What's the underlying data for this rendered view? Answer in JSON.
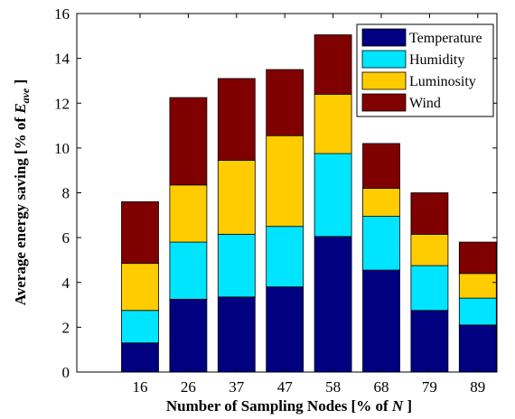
{
  "chart_data": {
    "type": "bar",
    "stacked": true,
    "categories": [
      "16",
      "26",
      "37",
      "47",
      "58",
      "68",
      "79",
      "89"
    ],
    "series": [
      {
        "name": "Temperature",
        "color": "#000080",
        "values": [
          1.3,
          3.25,
          3.35,
          3.8,
          6.05,
          4.55,
          2.75,
          2.1
        ]
      },
      {
        "name": "Humidity",
        "color": "#00e5ff",
        "values": [
          1.45,
          2.55,
          2.8,
          2.7,
          3.7,
          2.4,
          2.0,
          1.2
        ]
      },
      {
        "name": "Luminosity",
        "color": "#ffcc00",
        "values": [
          2.1,
          2.55,
          3.3,
          4.05,
          2.65,
          1.25,
          1.4,
          1.1
        ]
      },
      {
        "name": "Wind",
        "color": "#800000",
        "values": [
          2.75,
          3.9,
          3.65,
          2.95,
          2.65,
          2.0,
          1.85,
          1.4
        ]
      }
    ],
    "xlabel_parts": [
      "Number of Sampling Nodes [% of ",
      "N",
      " ]"
    ],
    "ylabel_parts": [
      "Average energy saving [% of ",
      "E",
      "ave",
      " ]"
    ],
    "ylim": [
      0,
      16
    ],
    "yticks": [
      "0",
      "2",
      "4",
      "6",
      "8",
      "10",
      "12",
      "14",
      "16"
    ],
    "grid": false,
    "legend_position": "top-right"
  }
}
